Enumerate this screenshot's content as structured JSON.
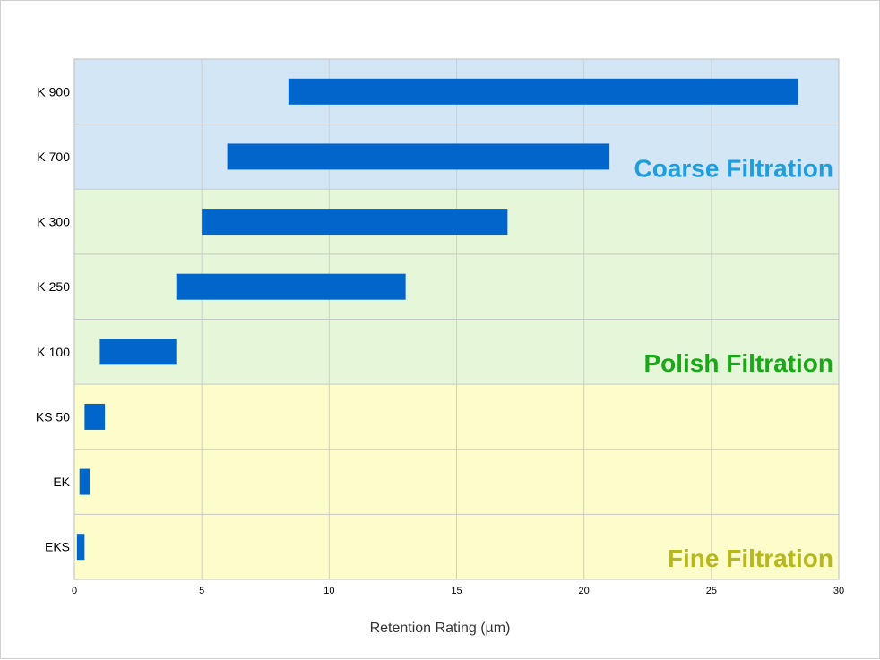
{
  "chart_data": {
    "type": "bar",
    "orientation": "horizontal",
    "title": "",
    "xlabel": "Retention Rating (µm)",
    "ylabel": "",
    "xlim": [
      0,
      30
    ],
    "xticks": [
      0,
      5,
      10,
      15,
      20,
      25,
      30
    ],
    "grid": true,
    "legend": "none",
    "bar_color": "#0066cc",
    "categories": [
      "K 900",
      "K 700",
      "K 300",
      "K 250",
      "K 100",
      "KS 50",
      "EK",
      "EKS"
    ],
    "ranges": [
      {
        "category": "K 900",
        "start": 8.4,
        "end": 28.4
      },
      {
        "category": "K 700",
        "start": 6.0,
        "end": 21.0
      },
      {
        "category": "K 300",
        "start": 5.0,
        "end": 17.0
      },
      {
        "category": "K 250",
        "start": 4.0,
        "end": 13.0
      },
      {
        "category": "K 100",
        "start": 1.0,
        "end": 4.0
      },
      {
        "category": "KS 50",
        "start": 0.4,
        "end": 1.2
      },
      {
        "category": "EK",
        "start": 0.2,
        "end": 0.6
      },
      {
        "category": "EKS",
        "start": 0.1,
        "end": 0.4
      }
    ],
    "zones": [
      {
        "label": "Coarse Filtration",
        "from": "K 900",
        "to": "K 700",
        "fill": "#d2e6f5",
        "text_color": "#1c9ee0"
      },
      {
        "label": "Polish Filtration",
        "from": "K 300",
        "to": "K 100",
        "fill": "#e6f6d9",
        "text_color": "#18a818"
      },
      {
        "label": "Fine Filtration",
        "from": "KS 50",
        "to": "EKS",
        "fill": "#fdfdcb",
        "text_color": "#b7b71e"
      }
    ]
  }
}
